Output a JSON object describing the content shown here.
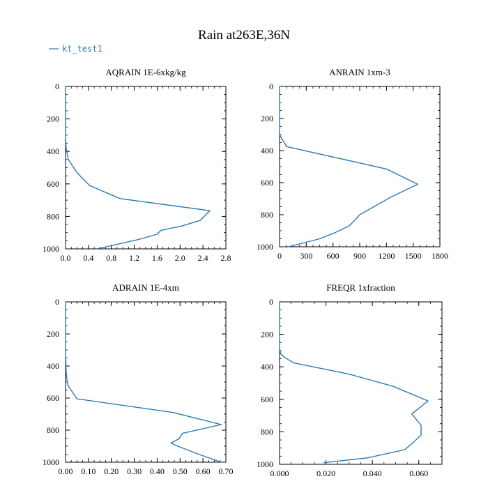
{
  "title": "Rain at263E,36N",
  "legend": {
    "label": "kt_test1",
    "color": "#2a7ab4",
    "position": "top-left"
  },
  "line_color": "#2a7ab4",
  "chart_data": [
    {
      "type": "line",
      "title": "AQRAIN  1E-6xkg/kg",
      "xlim": [
        0,
        2.8
      ],
      "ylim": [
        0,
        1000
      ],
      "y_inverted": true,
      "xticks": [
        "0.0",
        "0.4",
        "0.8",
        "1.2",
        "1.6",
        "2.0",
        "2.4",
        "2.8"
      ],
      "xtick_values": [
        0,
        0.4,
        0.8,
        1.2,
        1.6,
        2.0,
        2.4,
        2.8
      ],
      "yticks": [
        "0",
        "200",
        "400",
        "600",
        "800",
        "1000"
      ],
      "ytick_values": [
        0,
        200,
        400,
        600,
        800,
        1000
      ],
      "series": [
        {
          "x": [
            0,
            0,
            0.01,
            0.05,
            0.2,
            0.42,
            0.95,
            2.52,
            2.35,
            2.02,
            1.68,
            1.65,
            1.6,
            1.3,
            1.05,
            0.55
          ],
          "y": [
            0,
            300,
            380,
            450,
            530,
            610,
            690,
            765,
            825,
            860,
            885,
            890,
            910,
            940,
            960,
            1000
          ]
        }
      ]
    },
    {
      "type": "line",
      "title": "ANRAIN  1xm-3",
      "xlim": [
        0,
        1800
      ],
      "ylim": [
        0,
        1000
      ],
      "y_inverted": true,
      "xticks": [
        "0",
        "300",
        "600",
        "900",
        "1200",
        "1500",
        "1800"
      ],
      "xtick_values": [
        0,
        300,
        600,
        900,
        1200,
        1500,
        1800
      ],
      "yticks": [
        "0",
        "200",
        "400",
        "600",
        "800",
        "1000"
      ],
      "ytick_values": [
        0,
        200,
        400,
        600,
        800,
        1000
      ],
      "series": [
        {
          "x": [
            0,
            0,
            30,
            80,
            1200,
            1550,
            1250,
            900,
            870,
            780,
            630,
            450,
            100
          ],
          "y": [
            0,
            300,
            330,
            375,
            515,
            610,
            690,
            800,
            820,
            870,
            910,
            950,
            1000
          ]
        }
      ]
    },
    {
      "type": "line",
      "title": "ADRAIN  1E-4xm",
      "xlim": [
        0,
        0.7
      ],
      "ylim": [
        0,
        1000
      ],
      "y_inverted": true,
      "xticks": [
        "0.00",
        "0.10",
        "0.20",
        "0.30",
        "0.40",
        "0.50",
        "0.60",
        "0.70"
      ],
      "xtick_values": [
        0,
        0.1,
        0.2,
        0.3,
        0.4,
        0.5,
        0.6,
        0.7
      ],
      "yticks": [
        "0",
        "200",
        "400",
        "600",
        "800",
        "1000"
      ],
      "ytick_values": [
        0,
        200,
        400,
        600,
        800,
        1000
      ],
      "series": [
        {
          "x": [
            0,
            0,
            0.003,
            0.01,
            0.05,
            0.47,
            0.68,
            0.51,
            0.495,
            0.46,
            0.49,
            0.58,
            0.68
          ],
          "y": [
            0,
            300,
            450,
            520,
            605,
            690,
            765,
            820,
            855,
            880,
            900,
            950,
            1000
          ]
        }
      ]
    },
    {
      "type": "line",
      "title": "FREQR  1xfraction",
      "xlim": [
        0,
        0.07
      ],
      "ylim": [
        0,
        1000
      ],
      "y_inverted": true,
      "xticks": [
        "0.000",
        "0.020",
        "0.040",
        "0.060"
      ],
      "xtick_values": [
        0,
        0.02,
        0.04,
        0.06
      ],
      "yticks": [
        "0",
        "200",
        "400",
        "600",
        "800",
        "1000"
      ],
      "ytick_values": [
        0,
        200,
        400,
        600,
        800,
        1000
      ],
      "series": [
        {
          "x": [
            0,
            0,
            0.0005,
            0.002,
            0.006,
            0.03,
            0.049,
            0.064,
            0.057,
            0.061,
            0.061,
            0.058,
            0.054,
            0.038,
            0.019
          ],
          "y": [
            0,
            290,
            320,
            340,
            375,
            445,
            520,
            610,
            690,
            760,
            820,
            860,
            910,
            960,
            990
          ]
        }
      ]
    }
  ]
}
